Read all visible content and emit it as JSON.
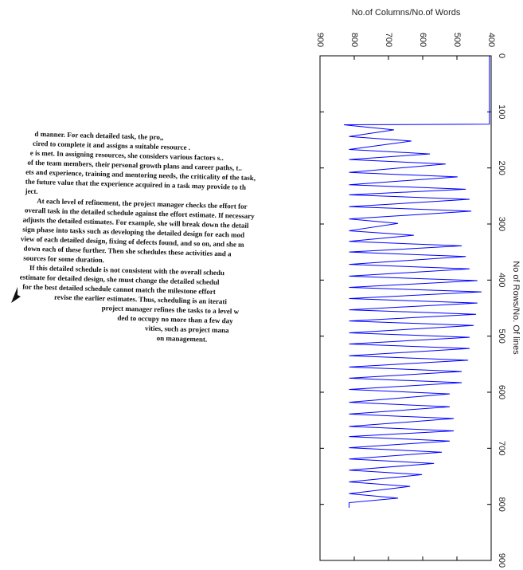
{
  "document": {
    "lines": [
      "d manner. For each detailed task, the pro,,",
      "cired to complete it and assigns a suitable resource .",
      "e is met. In assigning resources, she considers various factors s..",
      "of the team members, their personal growth plans and career paths, t..",
      "ets and experience, training and mentoring needs, the criticality of the task,",
      "the future value that the experience acquired in a task may provide to th",
      "ject.",
      "At each level of refinement, the project manager checks the effort for",
      "overall task in the detailed schedule against the effort estimate. If necessary",
      "adjusts the detailed estimates. For example, she will break down the detail",
      "sign phase into tasks such as developing the detailed design for each mod",
      "view of each detailed design, fixing of defects found, and so on, and she m",
      "down each of these further. Then she schedules these activities and a",
      "sources for some duration.",
      "If this detailed schedule is not consistent with the overall schedu",
      "estimate for detailed design, she must change the detailed schedul",
      "for the best detailed schedule cannot match the milestone effort",
      "revise the earlier estimates. Thus, scheduling is an iterati",
      "project manager refines the tasks to a level w",
      "ded to occupy no more than a few day",
      "vities, such as project mana",
      "on management."
    ]
  },
  "chart_data": {
    "type": "line",
    "title": "No.of Columns/No.of Words",
    "x_label": "No of Rows/No. Of lines",
    "x": [
      0,
      122,
      123,
      124,
      132,
      144,
      152,
      167,
      175,
      185,
      193,
      208,
      216,
      230,
      238,
      248,
      256,
      269,
      277,
      291,
      299,
      312,
      320,
      331,
      339,
      350,
      358,
      372,
      380,
      393,
      401,
      413,
      421,
      433,
      441,
      453,
      461,
      473,
      481,
      494,
      502,
      514,
      522,
      535,
      543,
      555,
      563,
      575,
      583,
      595,
      603,
      618,
      626,
      639,
      647,
      661,
      669,
      679,
      687,
      699,
      707,
      719,
      727,
      739,
      747,
      760,
      768,
      781,
      789,
      797,
      806
    ],
    "series": [
      {
        "color": "#0000ff",
        "values": [
          405,
          405,
          830,
          815,
          684,
          815,
          633,
          815,
          579,
          815,
          533,
          815,
          498,
          815,
          474,
          815,
          463,
          815,
          458,
          815,
          672,
          815,
          626,
          815,
          486,
          815,
          474,
          815,
          463,
          815,
          440,
          815,
          428,
          815,
          440,
          815,
          444,
          815,
          451,
          815,
          463,
          815,
          463,
          815,
          467,
          815,
          486,
          815,
          486,
          815,
          521,
          815,
          521,
          815,
          509,
          815,
          509,
          815,
          521,
          815,
          544,
          815,
          567,
          815,
          602,
          815,
          637,
          815,
          672,
          815,
          815
        ]
      }
    ],
    "xlim": [
      0,
      900
    ],
    "xticks": [
      0,
      100,
      200,
      300,
      400,
      500,
      600,
      700,
      800,
      900
    ],
    "ylim": [
      400,
      900
    ],
    "yticks": [
      400,
      500,
      600,
      700,
      800,
      900
    ]
  }
}
